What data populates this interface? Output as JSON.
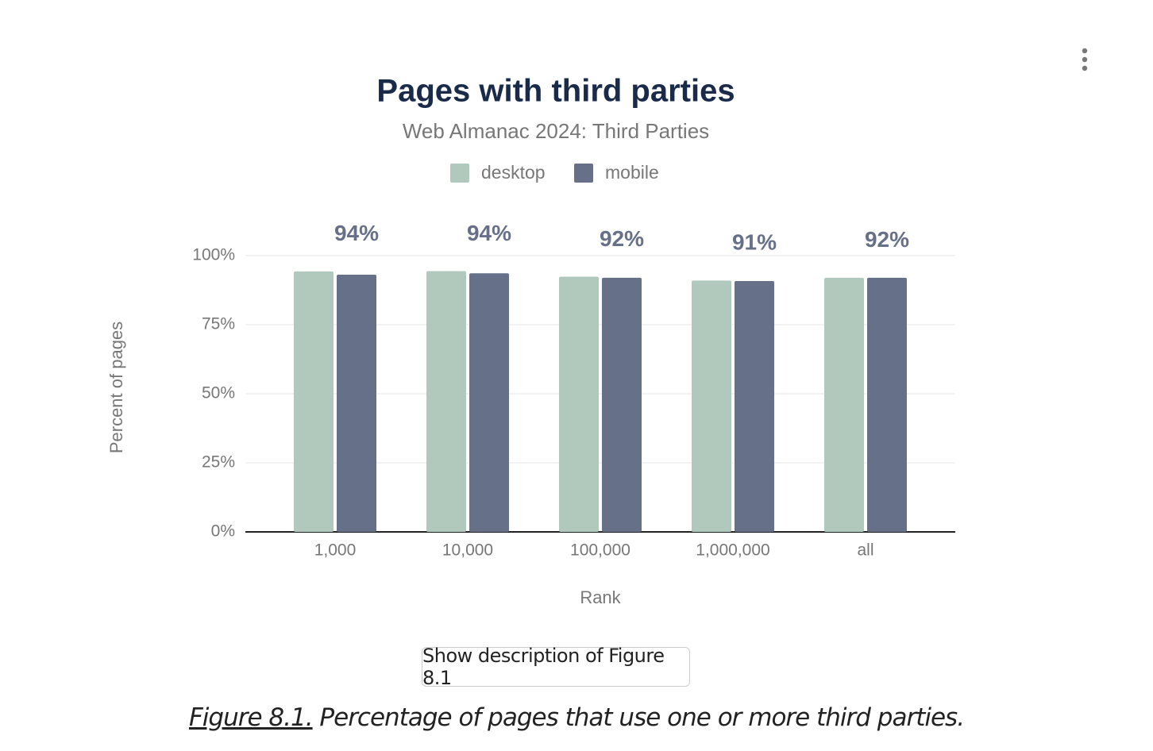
{
  "chart_data": {
    "type": "bar",
    "title": "Pages with third parties",
    "subtitle": "Web Almanac 2024: Third Parties",
    "x_label": "Rank",
    "y_label": "Percent of pages",
    "categories": [
      "1,000",
      "10,000",
      "100,000",
      "1,000,000",
      "all"
    ],
    "series": [
      {
        "name": "desktop",
        "color": "#b0c9bc",
        "values": [
          94.3,
          94.4,
          92.4,
          91.0,
          92.0
        ],
        "value_labels": [
          "94%",
          "94%",
          "92%",
          "91%",
          "92%"
        ]
      },
      {
        "name": "mobile",
        "color": "#667089",
        "values": [
          93.1,
          93.6,
          92.0,
          90.8,
          92.0
        ]
      }
    ],
    "ylim": [
      0,
      100
    ],
    "yticks": [
      {
        "value": 0,
        "label": "0%"
      },
      {
        "value": 25,
        "label": "25%"
      },
      {
        "value": 50,
        "label": "50%"
      },
      {
        "value": 75,
        "label": "75%"
      },
      {
        "value": 100,
        "label": "100%"
      }
    ],
    "grid": true,
    "legend": "top"
  },
  "figure": {
    "button": "Show description of Figure 8.1",
    "caption_link": "Figure 8.1.",
    "caption": "Percentage of pages that use one or more third parties."
  }
}
